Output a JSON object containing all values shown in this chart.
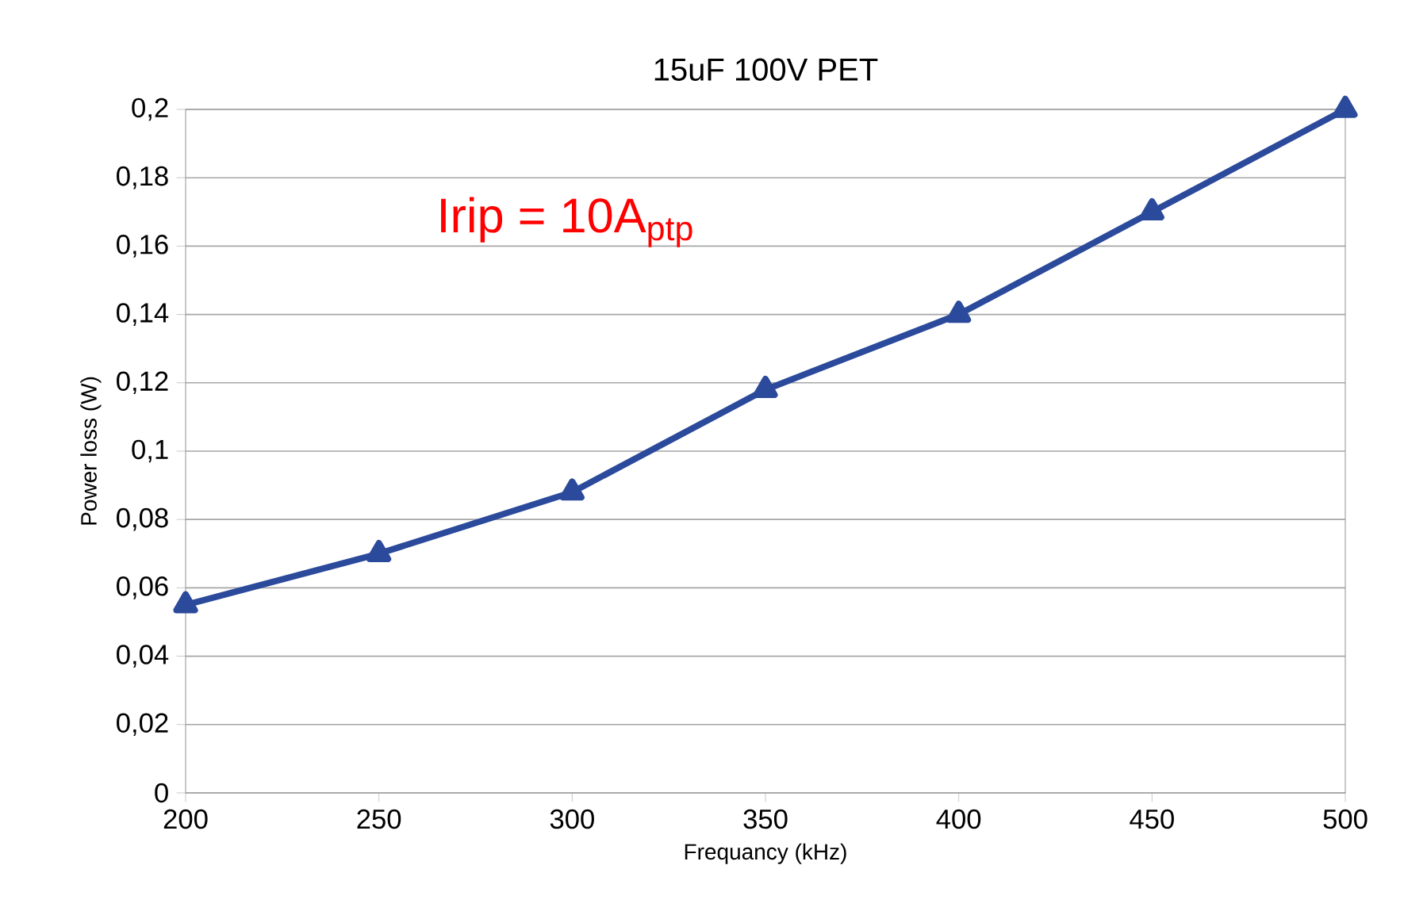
{
  "chart_data": {
    "type": "line",
    "title": "15uF 100V PET",
    "xlabel": "Frequancy (kHz)",
    "ylabel": "Power loss (W)",
    "annotations": [
      "Irip = 10A$_{ptp}$"
    ],
    "x": [
      200,
      250,
      300,
      350,
      400,
      450,
      500
    ],
    "series": [
      {
        "color": "#2b4a9b",
        "values": [
          0.055,
          0.07,
          0.088,
          0.118,
          0.14,
          0.17,
          0.2
        ]
      }
    ],
    "xlim": [
      200,
      500
    ],
    "xticks": [
      200,
      250,
      300,
      350,
      400,
      450,
      500
    ],
    "ylim": [
      0,
      0.2
    ],
    "yticks": [
      0,
      {
        "value": 0.02,
        "label": "0,02"
      },
      {
        "value": 0.04,
        "label": "0,04"
      },
      {
        "value": 0.06,
        "label": "0,06"
      },
      {
        "value": 0.08,
        "label": "0,08"
      },
      {
        "value": 0.1,
        "label": "0,1"
      },
      {
        "value": 0.12,
        "label": "0,12"
      },
      {
        "value": 0.14,
        "label": "0,14"
      },
      {
        "value": 0.16,
        "label": "0,16"
      },
      {
        "value": 0.18,
        "label": "0,18"
      },
      {
        "value": 0.2,
        "label": "0,2"
      }
    ],
    "grid": "y",
    "marker": "triangle",
    "line_style": "solid"
  }
}
